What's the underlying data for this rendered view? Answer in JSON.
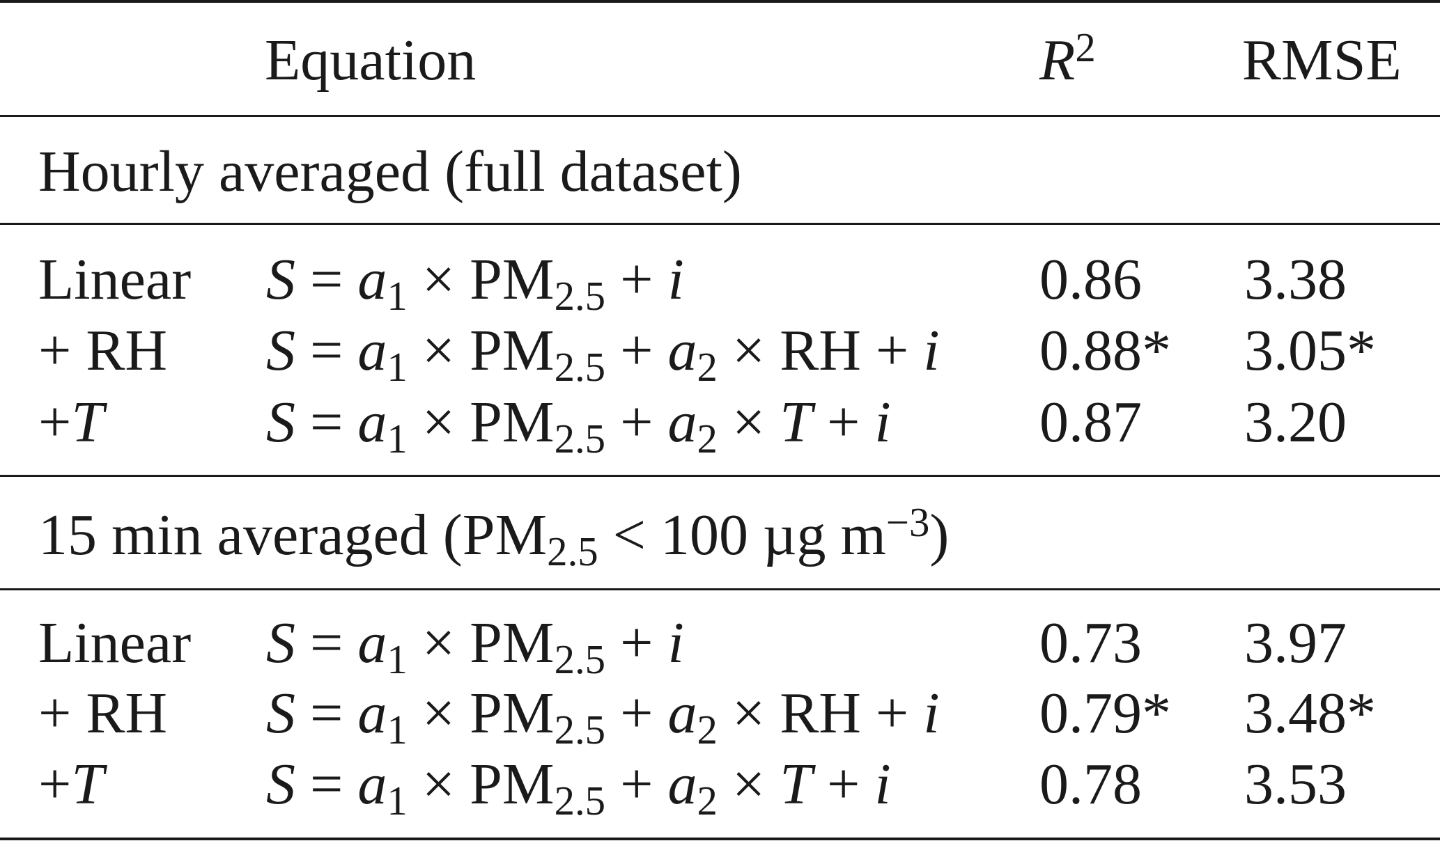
{
  "table": {
    "header": {
      "equation": "Equation",
      "r2_base": "R",
      "r2_sup": "2",
      "rmse": "RMSE"
    },
    "sections": [
      {
        "title_text": "Hourly averaged (full dataset)",
        "rows": [
          {
            "name": "Linear",
            "eq_extra_coef": "",
            "eq_extra_var": "",
            "r2": "0.86",
            "rmse": "3.38"
          },
          {
            "name": "+ RH",
            "eq_extra_coef": "2",
            "eq_extra_var": "RH",
            "r2": "0.88*",
            "rmse": "3.05*"
          },
          {
            "name": "+",
            "name_var": "T",
            "eq_extra_coef": "2",
            "eq_extra_var": "T",
            "r2": "0.87",
            "rmse": "3.20"
          }
        ]
      },
      {
        "title_pre": "15 min averaged (PM",
        "title_sub": "2.5",
        "title_mid": " < 100 µg m",
        "title_sup": "−3",
        "title_post": ")",
        "rows": [
          {
            "name": "Linear",
            "eq_extra_coef": "",
            "eq_extra_var": "",
            "r2": "0.73",
            "rmse": "3.97"
          },
          {
            "name": "+ RH",
            "eq_extra_coef": "2",
            "eq_extra_var": "RH",
            "r2": "0.79*",
            "rmse": "3.48*"
          },
          {
            "name": "+",
            "name_var": "T",
            "eq_extra_coef": "2",
            "eq_extra_var": "T",
            "r2": "0.78",
            "rmse": "3.53"
          }
        ]
      }
    ],
    "equation_parts": {
      "lhs": "S",
      "eq": " = ",
      "coef": "a",
      "coef1_sub": "1",
      "times": " × ",
      "pm": "PM",
      "pm_sub": "2.5",
      "plus": " + ",
      "intercept": "i"
    }
  }
}
